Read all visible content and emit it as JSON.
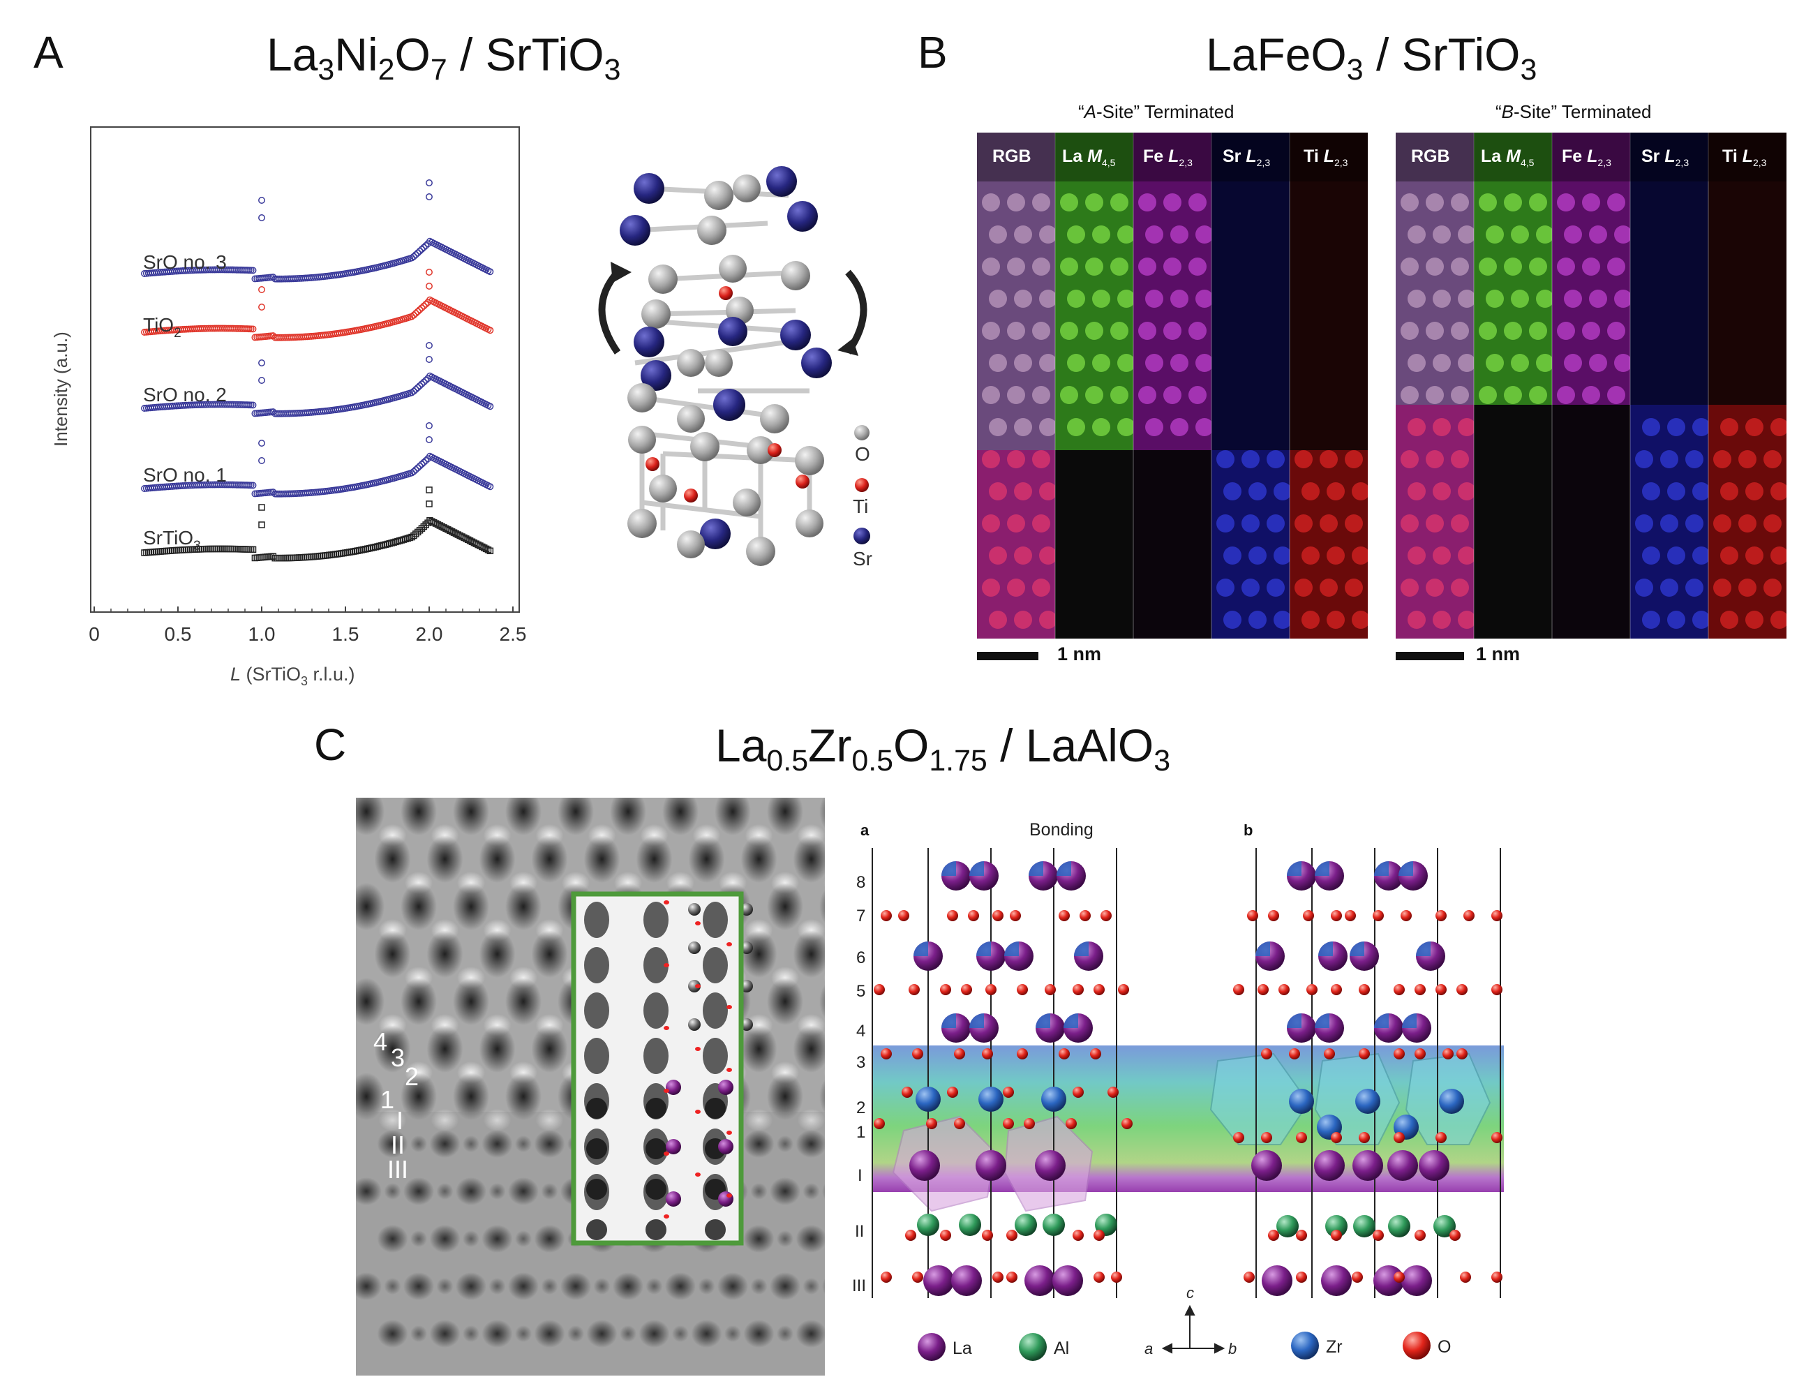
{
  "panel_a": {
    "label": "A",
    "title": {
      "p1": "La",
      "s1": "3",
      "p2": "Ni",
      "s2": "2",
      "p3": "O",
      "s3": "7",
      "p4": " / SrTiO",
      "s4": "3"
    },
    "chart_data": {
      "type": "scatter",
      "xlabel": "L (SrTiO3 r.l.u.)",
      "ylabel": "Intensity (a.u.)",
      "xlim": [
        0,
        2.5
      ],
      "xticks": [
        "0",
        "0.5",
        "1.0",
        "1.5",
        "2.0",
        "2.5"
      ],
      "series": [
        {
          "name": "SrO no. 3",
          "color": "#3a3a9a",
          "marker": "circle"
        },
        {
          "name": "TiO2",
          "color": "#e0362b",
          "marker": "circle"
        },
        {
          "name": "SrO no. 2",
          "color": "#3a3a9a",
          "marker": "circle"
        },
        {
          "name": "SrO no. 1",
          "color": "#3a3a9a",
          "marker": "circle"
        },
        {
          "name": "SrTiO3",
          "color": "#222222",
          "marker": "square"
        }
      ]
    },
    "labels": {
      "sro3": "SrO no. 3",
      "tio2_main": "TiO",
      "tio2_sub": "2",
      "sro2": "SrO no. 2",
      "sro1": "SrO no. 1",
      "sto_main": "SrTiO",
      "sto_sub": "3",
      "ylabel": "Intensity (a.u.)",
      "xlabel_l": "L",
      "xlabel_rest1": " (SrTiO",
      "xlabel_sub": "3",
      "xlabel_rest2": " r.l.u.)"
    },
    "legend": {
      "o": "O",
      "ti": "Ti",
      "sr": "Sr"
    }
  },
  "panel_b": {
    "label": "B",
    "title": {
      "p1": "LaFeO",
      "s1": "3",
      "p2": " / SrTiO",
      "s2": "3"
    },
    "map_left_title": {
      "q1": "“",
      "site": "A",
      "rest": "-Site” Terminated"
    },
    "map_right_title": {
      "q1": "“",
      "site": "B",
      "rest": "-Site” Terminated"
    },
    "channels": {
      "rgb": "RGB",
      "la": "La",
      "la_edge": "M",
      "la_sub": "4,5",
      "fe": "Fe",
      "fe_edge": "L",
      "fe_sub": "2,3",
      "sr": "Sr",
      "sr_edge": "L",
      "sr_sub": "2,3",
      "ti": "Ti",
      "ti_edge": "L",
      "ti_sub": "2,3"
    },
    "scalebar": "1 nm"
  },
  "panel_c": {
    "label": "C",
    "title": {
      "p1": "La",
      "s1": "0.5",
      "p2": "Zr",
      "s2": "0.5",
      "p3": "O",
      "s3": "1.75",
      "p4": " / LaAlO",
      "s4": "3"
    },
    "layer_numbers": [
      "4",
      "3",
      "2",
      "1",
      "I",
      "II",
      "III"
    ],
    "model_left_label": "a",
    "model_right_label": "b",
    "bonding": "Bonding",
    "rows": [
      "8",
      "7",
      "6",
      "5",
      "4",
      "3",
      "2",
      "1",
      "I",
      "II",
      "III"
    ],
    "legend": {
      "la": "La",
      "al": "Al",
      "zr": "Zr",
      "o": "O",
      "a": "a",
      "b": "b",
      "c": "c"
    }
  }
}
